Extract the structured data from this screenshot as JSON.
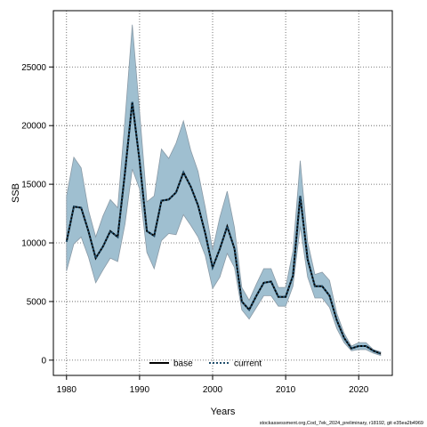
{
  "chart_data": {
    "type": "line",
    "title": "",
    "xlabel": "Years",
    "ylabel": "SSB",
    "xlim": [
      1978.2,
      2024.6
    ],
    "ylim": [
      -1300,
      29800
    ],
    "grid": true,
    "xticks": [
      1980,
      1990,
      2000,
      2010,
      2020
    ],
    "yticks": [
      0,
      5000,
      10000,
      15000,
      20000,
      25000
    ],
    "legend_position": "bottom-center",
    "colors": {
      "band": "#9fbfd0",
      "band_edge": "#8a9aa6",
      "base": "#000000",
      "current": "#1f4d6b"
    },
    "x": [
      1980,
      1981,
      1982,
      1983,
      1984,
      1985,
      1986,
      1987,
      1988,
      1989,
      1990,
      1991,
      1992,
      1993,
      1994,
      1995,
      1996,
      1997,
      1998,
      1999,
      2000,
      2001,
      2002,
      2003,
      2004,
      2005,
      2006,
      2007,
      2008,
      2009,
      2010,
      2011,
      2012,
      2013,
      2014,
      2015,
      2016,
      2017,
      2018,
      2019,
      2020,
      2021,
      2022,
      2023
    ],
    "series": [
      {
        "name": "base",
        "style": "solid",
        "color": "#000000",
        "values": [
          10100,
          13100,
          13000,
          11000,
          8700,
          9700,
          11000,
          10500,
          16000,
          22000,
          17000,
          11000,
          10600,
          13600,
          13700,
          14300,
          16000,
          14800,
          13200,
          10800,
          7900,
          9500,
          11400,
          9500,
          5000,
          4300,
          5500,
          6600,
          6700,
          5400,
          5400,
          7200,
          14000,
          8600,
          6300,
          6300,
          5500,
          3400,
          1900,
          1000,
          1200,
          1200,
          800,
          550
        ]
      },
      {
        "name": "current",
        "style": "dotted",
        "color": "#1f4d6b",
        "values": [
          10100,
          13100,
          13000,
          11000,
          8700,
          9700,
          11000,
          10500,
          16000,
          22000,
          17000,
          11000,
          10600,
          13600,
          13700,
          14300,
          16000,
          14800,
          13200,
          10800,
          7900,
          9500,
          11400,
          9500,
          5000,
          4300,
          5500,
          6600,
          6700,
          5400,
          5400,
          7200,
          14000,
          8600,
          6300,
          6300,
          5500,
          3400,
          1900,
          1000,
          1200,
          1200,
          800,
          550
        ]
      }
    ],
    "band_upper": [
      14000,
      17300,
      16400,
      12800,
      10500,
      12300,
      13700,
      13000,
      20500,
      28600,
      21200,
      13500,
      14000,
      18000,
      17200,
      18500,
      20400,
      17900,
      16100,
      13000,
      9400,
      12200,
      14400,
      11300,
      6200,
      5100,
      6500,
      7800,
      7800,
      6200,
      6200,
      9300,
      17000,
      10100,
      7300,
      7500,
      6800,
      4000,
      2300,
      1200,
      1500,
      1500,
      900,
      700
    ],
    "band_lower": [
      7600,
      9900,
      10500,
      8800,
      6600,
      7700,
      8700,
      8400,
      11600,
      16300,
      14600,
      9200,
      7800,
      10200,
      10800,
      10700,
      12400,
      11500,
      10500,
      8900,
      6100,
      7100,
      9100,
      7900,
      4300,
      3500,
      4500,
      5500,
      5500,
      4600,
      4600,
      6300,
      11400,
      7100,
      5300,
      5300,
      4500,
      2700,
      1500,
      800,
      900,
      900,
      600,
      400
    ],
    "legend": [
      "base",
      "current"
    ],
    "footer": "stockassessment.org,Cod_7ek_2024_preliminary, r18192, git e35ea2b4969"
  }
}
